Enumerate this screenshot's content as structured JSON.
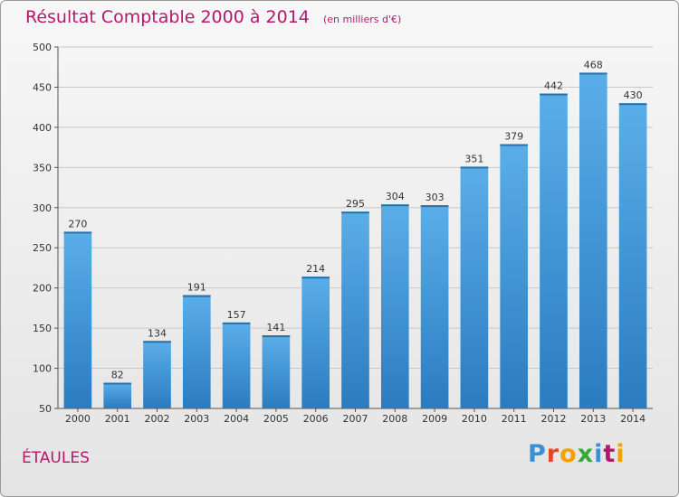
{
  "header": {
    "title": "Résultat Comptable 2000 à 2014",
    "subtitle": "(en milliers d'€)"
  },
  "footer": {
    "commune": "ÉTAULES",
    "logo_letters": [
      "P",
      "r",
      "o",
      "x",
      "i",
      "t",
      "i"
    ],
    "logo_colors": [
      "#3a8fd6",
      "#e8442a",
      "#f2a200",
      "#38a83a",
      "#3a8fd6",
      "#b5176c",
      "#f2a200"
    ]
  },
  "chart_data": {
    "type": "bar",
    "categories": [
      "2000",
      "2001",
      "2002",
      "2003",
      "2004",
      "2005",
      "2006",
      "2007",
      "2008",
      "2009",
      "2010",
      "2011",
      "2012",
      "2013",
      "2014"
    ],
    "values": [
      270,
      82,
      134,
      191,
      157,
      141,
      214,
      295,
      304,
      303,
      351,
      379,
      442,
      468,
      430
    ],
    "value_labels": [
      "270",
      "82",
      "134",
      "191",
      "157",
      "141",
      "214",
      "295",
      "304",
      "303",
      "351",
      "379",
      "442",
      "468",
      "430"
    ],
    "y_ticks": [
      "50",
      "100",
      "150",
      "200",
      "250",
      "300",
      "350",
      "400",
      "450",
      "500"
    ],
    "title": "Résultat Comptable 2000 à 2014",
    "xlabel": "",
    "ylabel": "",
    "ylim": [
      50,
      500
    ],
    "grid": true,
    "legend": "none",
    "colors": {
      "bar_light": "#5aaee8",
      "bar_dark": "#2a7cc0",
      "grid": "#c8c8c8",
      "title": "#b5176c"
    }
  }
}
